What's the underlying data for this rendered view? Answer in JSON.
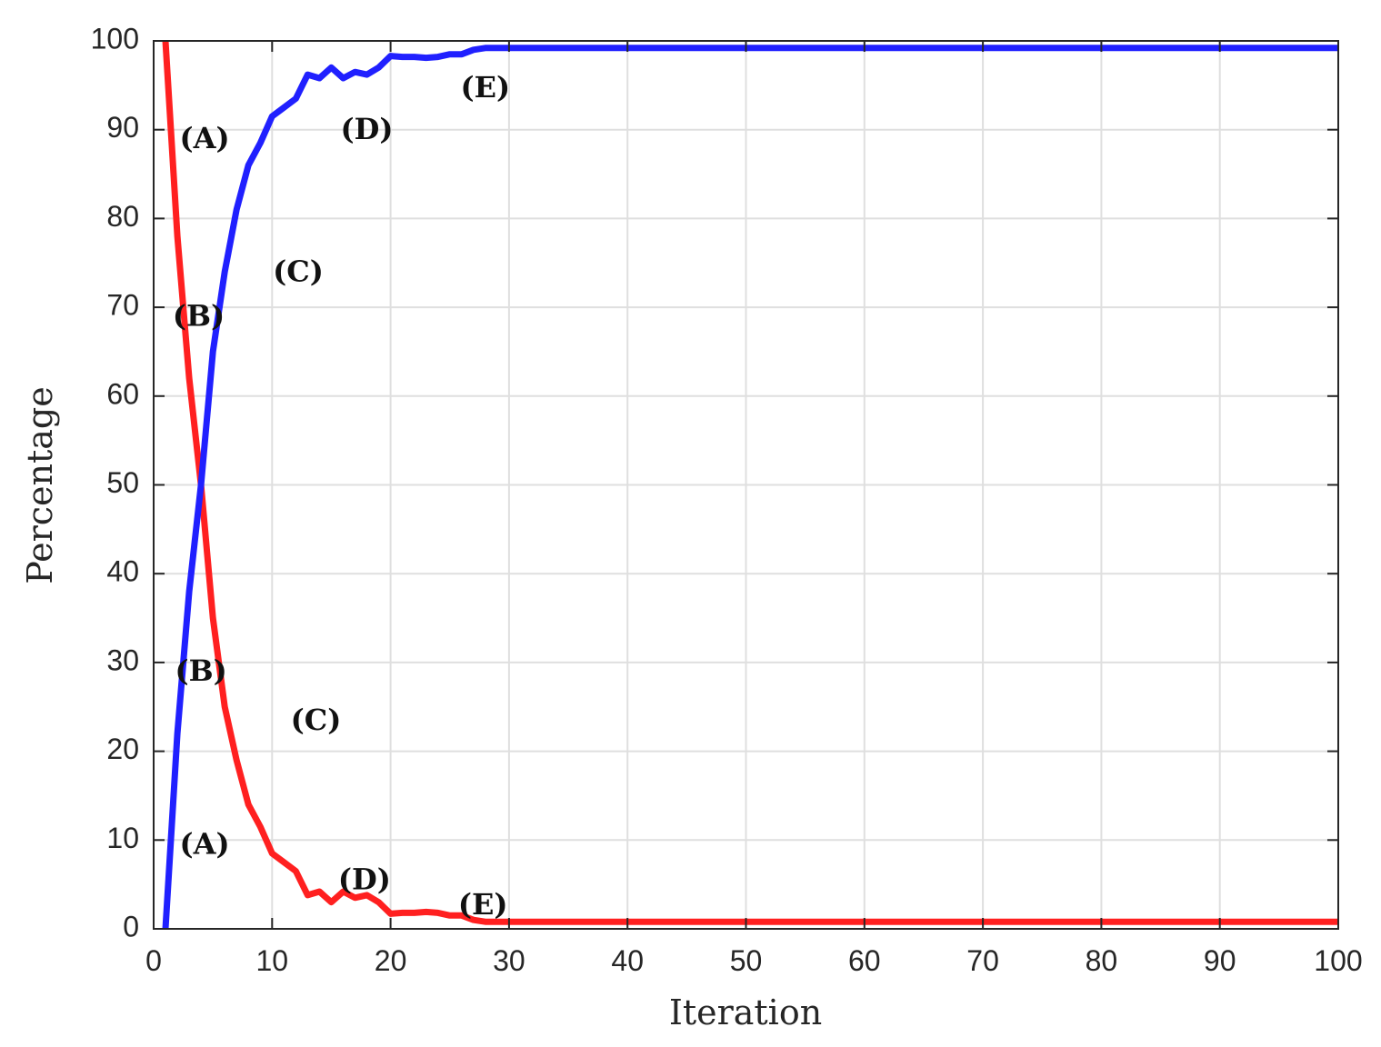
{
  "chart_data": {
    "type": "line",
    "title": "",
    "xlabel": "Iteration",
    "ylabel": "Percentage",
    "xlim": [
      0,
      100
    ],
    "ylim": [
      0,
      100
    ],
    "xticks": [
      0,
      10,
      20,
      30,
      40,
      50,
      60,
      70,
      80,
      90,
      100
    ],
    "yticks": [
      0,
      10,
      20,
      30,
      40,
      50,
      60,
      70,
      80,
      90,
      100
    ],
    "grid": true,
    "series": [
      {
        "color": "#ff2020",
        "x": [
          1,
          2,
          3,
          4,
          5,
          6,
          7,
          8,
          9,
          10,
          11,
          12,
          13,
          14,
          15,
          16,
          17,
          18,
          19,
          20,
          21,
          22,
          23,
          24,
          25,
          26,
          27,
          28,
          30,
          40,
          50,
          60,
          70,
          80,
          90,
          100
        ],
        "y": [
          100,
          78,
          62,
          50,
          35,
          25,
          19,
          14,
          11.5,
          8.5,
          7.5,
          6.5,
          3.8,
          4.2,
          3.0,
          4.2,
          3.5,
          3.8,
          3.0,
          1.7,
          1.8,
          1.8,
          1.9,
          1.8,
          1.5,
          1.5,
          1.0,
          0.8,
          0.8,
          0.8,
          0.8,
          0.8,
          0.8,
          0.8,
          0.8,
          0.8
        ]
      },
      {
        "color": "#2020ff",
        "x": [
          1,
          2,
          3,
          4,
          5,
          6,
          7,
          8,
          9,
          10,
          11,
          12,
          13,
          14,
          15,
          16,
          17,
          18,
          19,
          20,
          21,
          22,
          23,
          24,
          25,
          26,
          27,
          28,
          30,
          40,
          50,
          60,
          70,
          80,
          90,
          100
        ],
        "y": [
          0,
          22,
          38,
          50,
          65,
          74,
          81,
          86,
          88.5,
          91.5,
          92.5,
          93.5,
          96.2,
          95.8,
          97.0,
          95.8,
          96.5,
          96.2,
          97.0,
          98.3,
          98.2,
          98.2,
          98.1,
          98.2,
          98.5,
          98.5,
          99.0,
          99.2,
          99.2,
          99.2,
          99.2,
          99.2,
          99.2,
          99.2,
          99.2,
          99.2
        ]
      }
    ],
    "annotations": [
      {
        "text": "(A)",
        "x": 4.3,
        "y": 88.8
      },
      {
        "text": "(A)",
        "x": 4.3,
        "y": 9.3
      },
      {
        "text": "(B)",
        "x": 3.8,
        "y": 68.8
      },
      {
        "text": "(B)",
        "x": 4.0,
        "y": 28.8
      },
      {
        "text": "(C)",
        "x": 12.2,
        "y": 73.8
      },
      {
        "text": "(C)",
        "x": 13.7,
        "y": 23.3
      },
      {
        "text": "(D)",
        "x": 18.0,
        "y": 89.8
      },
      {
        "text": "(D)",
        "x": 17.8,
        "y": 5.3
      },
      {
        "text": "(E)",
        "x": 28.0,
        "y": 94.5
      },
      {
        "text": "(E)",
        "x": 27.8,
        "y": 2.5
      }
    ]
  }
}
